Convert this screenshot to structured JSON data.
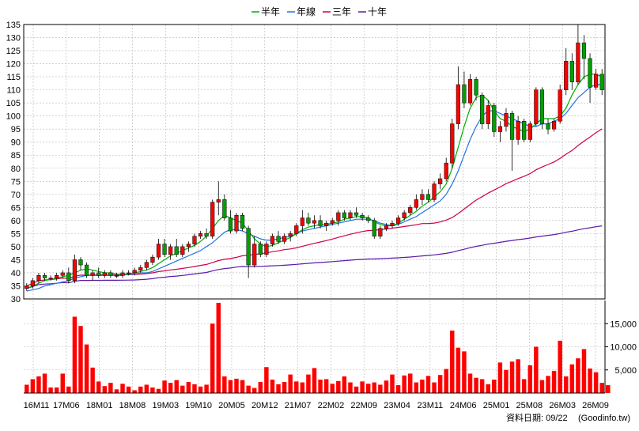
{
  "legend": [
    {
      "label": "半年",
      "color": "#00b000"
    },
    {
      "label": "年線",
      "color": "#1e73e8"
    },
    {
      "label": "三年",
      "color": "#d0004a"
    },
    {
      "label": "十年",
      "color": "#5a1aa8"
    }
  ],
  "footer": {
    "date_label": "資料日期: 09/22",
    "source": "(Goodinfo.tw)"
  },
  "chart_data": {
    "type": "candlestick+volume",
    "price_axis": {
      "min": 30,
      "max": 135,
      "ticks": [
        30,
        35,
        40,
        45,
        50,
        55,
        60,
        65,
        70,
        75,
        80,
        85,
        90,
        95,
        100,
        105,
        110,
        115,
        120,
        125,
        130,
        135
      ]
    },
    "volume_axis": {
      "min": 0,
      "max": 20000,
      "ticks": [
        5000,
        10000,
        15000
      ],
      "tick_labels": [
        "5,000",
        "10,000",
        "15,000"
      ]
    },
    "x_tick_labels": [
      "16M11",
      "17M06",
      "18M01",
      "18M08",
      "19M03",
      "19M10",
      "20M05",
      "20M12",
      "21M07",
      "22M02",
      "22M09",
      "23M04",
      "23M11",
      "24M06",
      "25M01",
      "25M08",
      "26M03",
      "26M09"
    ],
    "candles": [
      {
        "o": 34,
        "h": 36,
        "l": 33,
        "c": 35
      },
      {
        "o": 35,
        "h": 38,
        "l": 34,
        "c": 37
      },
      {
        "o": 37,
        "h": 40,
        "l": 36,
        "c": 39
      },
      {
        "o": 39,
        "h": 40,
        "l": 37,
        "c": 38
      },
      {
        "o": 38,
        "h": 39,
        "l": 37,
        "c": 38
      },
      {
        "o": 38,
        "h": 40,
        "l": 37,
        "c": 39
      },
      {
        "o": 39,
        "h": 41,
        "l": 38,
        "c": 40
      },
      {
        "o": 40,
        "h": 42,
        "l": 36,
        "c": 37
      },
      {
        "o": 37,
        "h": 47,
        "l": 36,
        "c": 45
      },
      {
        "o": 45,
        "h": 46,
        "l": 41,
        "c": 43
      },
      {
        "o": 43,
        "h": 44,
        "l": 38,
        "c": 39
      },
      {
        "o": 39,
        "h": 41,
        "l": 37,
        "c": 40
      },
      {
        "o": 40,
        "h": 42,
        "l": 38,
        "c": 39
      },
      {
        "o": 39,
        "h": 41,
        "l": 38,
        "c": 40
      },
      {
        "o": 40,
        "h": 41,
        "l": 38,
        "c": 39
      },
      {
        "o": 39,
        "h": 40,
        "l": 38,
        "c": 39
      },
      {
        "o": 39,
        "h": 41,
        "l": 38,
        "c": 40
      },
      {
        "o": 40,
        "h": 41,
        "l": 39,
        "c": 40
      },
      {
        "o": 40,
        "h": 42,
        "l": 39,
        "c": 41
      },
      {
        "o": 41,
        "h": 43,
        "l": 40,
        "c": 42
      },
      {
        "o": 42,
        "h": 45,
        "l": 41,
        "c": 44
      },
      {
        "o": 44,
        "h": 47,
        "l": 43,
        "c": 46
      },
      {
        "o": 46,
        "h": 53,
        "l": 45,
        "c": 51
      },
      {
        "o": 51,
        "h": 53,
        "l": 46,
        "c": 47
      },
      {
        "o": 47,
        "h": 51,
        "l": 45,
        "c": 50
      },
      {
        "o": 50,
        "h": 53,
        "l": 46,
        "c": 47
      },
      {
        "o": 47,
        "h": 51,
        "l": 46,
        "c": 50
      },
      {
        "o": 50,
        "h": 52,
        "l": 48,
        "c": 51
      },
      {
        "o": 51,
        "h": 55,
        "l": 50,
        "c": 54
      },
      {
        "o": 54,
        "h": 56,
        "l": 53,
        "c": 55
      },
      {
        "o": 55,
        "h": 57,
        "l": 53,
        "c": 54
      },
      {
        "o": 54,
        "h": 68,
        "l": 53,
        "c": 67
      },
      {
        "o": 67,
        "h": 75,
        "l": 62,
        "c": 68
      },
      {
        "o": 68,
        "h": 70,
        "l": 60,
        "c": 61
      },
      {
        "o": 61,
        "h": 64,
        "l": 55,
        "c": 56
      },
      {
        "o": 56,
        "h": 63,
        "l": 55,
        "c": 62
      },
      {
        "o": 62,
        "h": 63,
        "l": 56,
        "c": 57
      },
      {
        "o": 57,
        "h": 58,
        "l": 38,
        "c": 43
      },
      {
        "o": 43,
        "h": 54,
        "l": 42,
        "c": 51
      },
      {
        "o": 51,
        "h": 52,
        "l": 46,
        "c": 47
      },
      {
        "o": 47,
        "h": 52,
        "l": 46,
        "c": 51
      },
      {
        "o": 51,
        "h": 55,
        "l": 50,
        "c": 54
      },
      {
        "o": 54,
        "h": 56,
        "l": 51,
        "c": 52
      },
      {
        "o": 52,
        "h": 55,
        "l": 51,
        "c": 54
      },
      {
        "o": 54,
        "h": 56,
        "l": 52,
        "c": 55
      },
      {
        "o": 55,
        "h": 59,
        "l": 54,
        "c": 58
      },
      {
        "o": 58,
        "h": 64,
        "l": 55,
        "c": 61
      },
      {
        "o": 61,
        "h": 63,
        "l": 58,
        "c": 59
      },
      {
        "o": 59,
        "h": 62,
        "l": 57,
        "c": 60
      },
      {
        "o": 60,
        "h": 62,
        "l": 57,
        "c": 58
      },
      {
        "o": 58,
        "h": 60,
        "l": 56,
        "c": 59
      },
      {
        "o": 59,
        "h": 61,
        "l": 58,
        "c": 60
      },
      {
        "o": 60,
        "h": 64,
        "l": 58,
        "c": 63
      },
      {
        "o": 63,
        "h": 64,
        "l": 60,
        "c": 61
      },
      {
        "o": 61,
        "h": 64,
        "l": 60,
        "c": 63
      },
      {
        "o": 63,
        "h": 65,
        "l": 61,
        "c": 62
      },
      {
        "o": 62,
        "h": 63,
        "l": 60,
        "c": 61
      },
      {
        "o": 61,
        "h": 62,
        "l": 59,
        "c": 60
      },
      {
        "o": 60,
        "h": 61,
        "l": 53,
        "c": 54
      },
      {
        "o": 54,
        "h": 58,
        "l": 53,
        "c": 57
      },
      {
        "o": 57,
        "h": 59,
        "l": 56,
        "c": 58
      },
      {
        "o": 58,
        "h": 60,
        "l": 57,
        "c": 59
      },
      {
        "o": 59,
        "h": 62,
        "l": 58,
        "c": 61
      },
      {
        "o": 61,
        "h": 64,
        "l": 60,
        "c": 63
      },
      {
        "o": 63,
        "h": 66,
        "l": 62,
        "c": 65
      },
      {
        "o": 65,
        "h": 70,
        "l": 64,
        "c": 68
      },
      {
        "o": 68,
        "h": 72,
        "l": 66,
        "c": 70
      },
      {
        "o": 70,
        "h": 72,
        "l": 67,
        "c": 68
      },
      {
        "o": 68,
        "h": 75,
        "l": 67,
        "c": 74
      },
      {
        "o": 74,
        "h": 78,
        "l": 72,
        "c": 76
      },
      {
        "o": 76,
        "h": 84,
        "l": 75,
        "c": 82
      },
      {
        "o": 82,
        "h": 99,
        "l": 80,
        "c": 97
      },
      {
        "o": 97,
        "h": 119,
        "l": 95,
        "c": 112
      },
      {
        "o": 112,
        "h": 117,
        "l": 103,
        "c": 105
      },
      {
        "o": 105,
        "h": 116,
        "l": 104,
        "c": 114
      },
      {
        "o": 114,
        "h": 115,
        "l": 106,
        "c": 108
      },
      {
        "o": 108,
        "h": 109,
        "l": 95,
        "c": 97
      },
      {
        "o": 97,
        "h": 106,
        "l": 95,
        "c": 104
      },
      {
        "o": 104,
        "h": 105,
        "l": 92,
        "c": 94
      },
      {
        "o": 94,
        "h": 98,
        "l": 90,
        "c": 96
      },
      {
        "o": 96,
        "h": 103,
        "l": 94,
        "c": 101
      },
      {
        "o": 101,
        "h": 102,
        "l": 79,
        "c": 91
      },
      {
        "o": 91,
        "h": 100,
        "l": 89,
        "c": 98
      },
      {
        "o": 98,
        "h": 99,
        "l": 90,
        "c": 91
      },
      {
        "o": 91,
        "h": 98,
        "l": 90,
        "c": 97
      },
      {
        "o": 97,
        "h": 111,
        "l": 96,
        "c": 110
      },
      {
        "o": 110,
        "h": 111,
        "l": 95,
        "c": 97
      },
      {
        "o": 97,
        "h": 99,
        "l": 93,
        "c": 95
      },
      {
        "o": 95,
        "h": 99,
        "l": 94,
        "c": 98
      },
      {
        "o": 98,
        "h": 112,
        "l": 97,
        "c": 110
      },
      {
        "o": 110,
        "h": 126,
        "l": 108,
        "c": 121
      },
      {
        "o": 121,
        "h": 124,
        "l": 110,
        "c": 113
      },
      {
        "o": 113,
        "h": 135,
        "l": 112,
        "c": 128
      },
      {
        "o": 128,
        "h": 131,
        "l": 114,
        "c": 122
      },
      {
        "o": 122,
        "h": 124,
        "l": 105,
        "c": 111
      },
      {
        "o": 111,
        "h": 118,
        "l": 110,
        "c": 116
      },
      {
        "o": 116,
        "h": 118,
        "l": 108,
        "c": 110
      }
    ],
    "volume": [
      1800,
      3000,
      3600,
      4200,
      1200,
      1200,
      4200,
      1400,
      16500,
      14500,
      10500,
      5500,
      2500,
      1500,
      2200,
      800,
      2000,
      1400,
      600,
      1400,
      1800,
      1200,
      900,
      2700,
      2200,
      2800,
      1600,
      2400,
      1900,
      1400,
      1800,
      15000,
      19500,
      3600,
      2800,
      3100,
      2800,
      1600,
      1100,
      2400,
      5600,
      2900,
      1900,
      2400,
      4000,
      2500,
      2300,
      4000,
      5400,
      2900,
      3000,
      2000,
      2600,
      3600,
      2300,
      1400,
      2500,
      2000,
      2300,
      1800,
      2700,
      4000,
      1700,
      3800,
      4200,
      2300,
      2900,
      3700,
      2300,
      3900,
      5200,
      13500,
      9800,
      9000,
      4200,
      3300,
      3000,
      1900,
      2900,
      6600,
      5000,
      6800,
      7300,
      3000,
      6000,
      10000,
      2800,
      3700,
      4800,
      11300,
      3600,
      6200,
      7500,
      9500,
      5300,
      4500,
      2200,
      1700
    ],
    "ma_half_year": [
      34,
      35,
      36,
      37,
      37.5,
      38,
      38.5,
      39,
      40,
      41,
      41.5,
      41,
      40.5,
      40,
      40,
      39.5,
      39.5,
      39.5,
      40,
      40.5,
      41,
      42,
      43.5,
      45,
      46.5,
      47.5,
      48.5,
      49.5,
      50.5,
      52,
      54,
      57,
      60,
      62,
      61,
      60,
      59,
      56,
      53,
      51,
      50,
      50.5,
      51.5,
      52.5,
      53.5,
      55,
      56.5,
      57.5,
      58,
      58.5,
      58.5,
      59,
      59.5,
      60.5,
      61,
      61.5,
      61.5,
      61,
      59.5,
      58.5,
      58,
      58,
      59,
      60.5,
      62,
      63.5,
      65.5,
      67,
      69,
      71,
      74,
      80,
      88,
      96,
      103,
      107,
      108,
      106,
      102,
      99,
      98,
      96,
      95,
      94,
      95,
      97,
      99,
      99,
      99,
      100,
      103,
      108,
      112,
      115,
      116,
      116,
      115
    ],
    "ma_one_year": [
      33,
      33.5,
      34,
      35,
      35.5,
      36,
      36.5,
      37,
      38,
      38.5,
      39,
      39,
      39,
      39,
      39,
      39,
      39,
      39.5,
      39.5,
      40,
      40,
      40.5,
      41.5,
      42.5,
      43.5,
      44.5,
      45.5,
      46.5,
      47.5,
      48.5,
      50,
      51.5,
      53.5,
      55.5,
      56.5,
      56.5,
      56,
      55,
      54,
      53,
      52.5,
      52.5,
      53,
      53.5,
      54,
      55,
      56,
      56.5,
      57,
      57.5,
      58,
      58.5,
      59,
      59.5,
      60,
      60.5,
      60.5,
      60.5,
      60,
      59,
      58.5,
      58,
      58.5,
      59.5,
      60.5,
      61.5,
      63,
      64.5,
      66,
      67.5,
      70,
      74,
      79,
      85,
      91,
      96,
      100,
      102,
      102,
      101,
      100,
      99,
      98,
      97,
      96,
      96,
      97,
      97,
      98,
      99,
      101,
      104,
      107,
      109,
      111,
      112,
      112
    ]
  }
}
